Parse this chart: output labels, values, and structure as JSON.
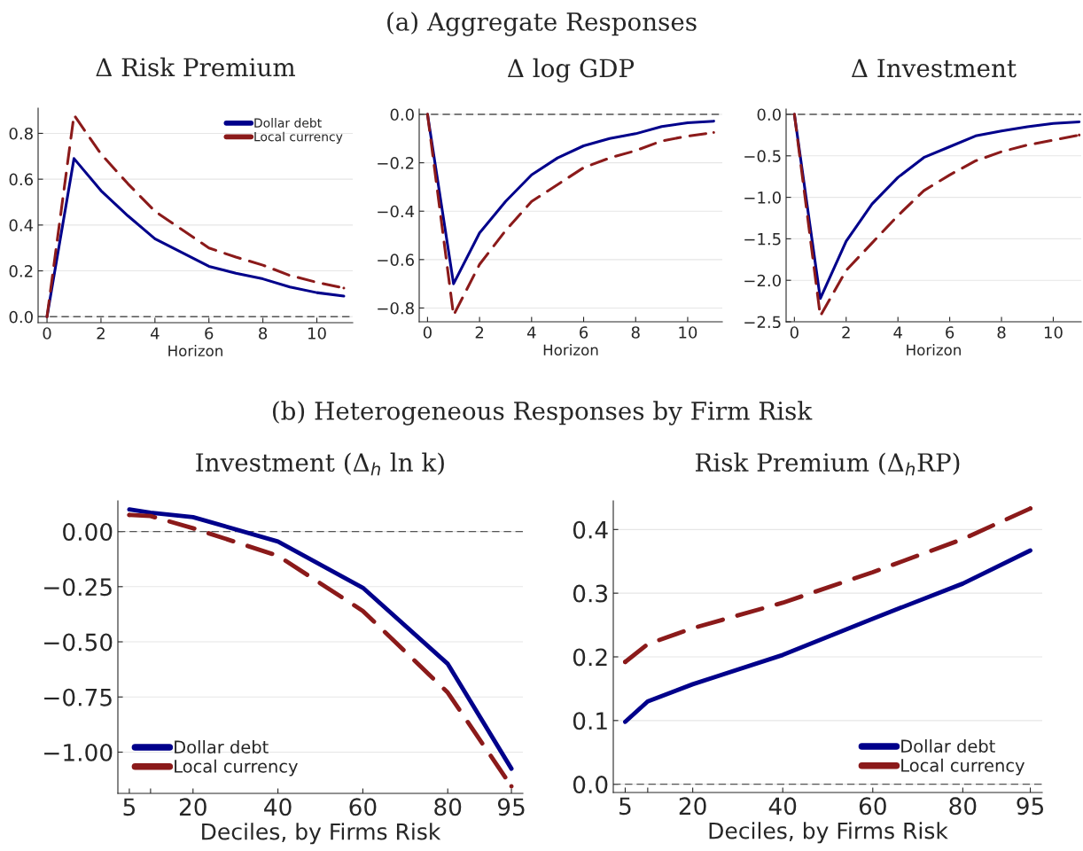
{
  "chart_data": [
    {
      "type": "line",
      "title": "Δ Risk Premium",
      "xlabel": "Horizon",
      "annotations": [
        "(a) Aggregate Responses"
      ],
      "x": [
        0,
        1,
        2,
        3,
        4,
        5,
        6,
        7,
        8,
        9,
        10,
        11
      ],
      "series": [
        {
          "name": "Dollar debt",
          "color": "#00008b",
          "line_style": "solid",
          "values": [
            0,
            0.69,
            0.55,
            0.44,
            0.34,
            0.28,
            0.22,
            0.19,
            0.165,
            0.13,
            0.105,
            0.09
          ]
        },
        {
          "name": "Local currency",
          "color": "#8b1a1a",
          "line_style": "dashed",
          "values": [
            0,
            0.88,
            0.71,
            0.58,
            0.46,
            0.38,
            0.3,
            0.26,
            0.225,
            0.18,
            0.15,
            0.125
          ]
        }
      ],
      "xlim": [
        -0.33,
        11.33
      ],
      "xticks": [
        0,
        2,
        4,
        6,
        8,
        10
      ],
      "ylim": [
        -0.026,
        0.91
      ],
      "yticks": [
        {
          "value": 0,
          "label": "0.0"
        },
        0.2,
        0.4,
        0.6,
        0.8
      ],
      "ref_lines": [
        {
          "axis": "y",
          "value": 0,
          "color": "#555555",
          "line_style": "dashed"
        }
      ],
      "grid": "y",
      "legend": "top right",
      "marker": "none"
    },
    {
      "type": "line",
      "title": "Δ log GDP",
      "xlabel": "Horizon",
      "x": [
        0,
        1,
        2,
        3,
        4,
        5,
        6,
        7,
        8,
        9,
        10,
        11
      ],
      "series": [
        {
          "color": "#00008b",
          "line_style": "solid",
          "values": [
            0,
            -0.7,
            -0.49,
            -0.36,
            -0.25,
            -0.18,
            -0.13,
            -0.1,
            -0.08,
            -0.05,
            -0.035,
            -0.028
          ]
        },
        {
          "color": "#8b1a1a",
          "line_style": "dashed",
          "values": [
            0,
            -0.83,
            -0.62,
            -0.48,
            -0.36,
            -0.29,
            -0.22,
            -0.18,
            -0.15,
            -0.11,
            -0.09,
            -0.075
          ]
        }
      ],
      "xlim": [
        -0.32,
        11.33
      ],
      "xticks": [
        0,
        2,
        4,
        6,
        8,
        10
      ],
      "ylim": [
        -0.857,
        0.022
      ],
      "yticks": [
        {
          "value": -0.8,
          "label": "−0.8"
        },
        {
          "value": -0.6,
          "label": "−0.6"
        },
        {
          "value": -0.4,
          "label": "−0.4"
        },
        {
          "value": -0.2,
          "label": "−0.2"
        },
        {
          "value": 0,
          "label": "0.0"
        }
      ],
      "ref_lines": [
        {
          "axis": "y",
          "value": 0,
          "color": "#555555",
          "line_style": "dashed"
        }
      ],
      "grid": "y",
      "legend": false,
      "marker": "none"
    },
    {
      "type": "line",
      "title": "Δ Investment",
      "xlabel": "Horizon",
      "x": [
        0,
        1,
        2,
        3,
        4,
        5,
        6,
        7,
        8,
        9,
        10,
        11
      ],
      "series": [
        {
          "color": "#00008b",
          "line_style": "solid",
          "values": [
            0,
            -2.22,
            -1.53,
            -1.08,
            -0.76,
            -0.52,
            -0.39,
            -0.26,
            -0.2,
            -0.15,
            -0.11,
            -0.09
          ]
        },
        {
          "color": "#8b1a1a",
          "line_style": "dashed",
          "values": [
            0,
            -2.43,
            -1.88,
            -1.55,
            -1.22,
            -0.92,
            -0.73,
            -0.56,
            -0.45,
            -0.37,
            -0.31,
            -0.25
          ]
        }
      ],
      "xlim": [
        -0.32,
        11.08
      ],
      "xticks": [
        0,
        2,
        4,
        6,
        8,
        10
      ],
      "ylim": [
        -2.5,
        0.064
      ],
      "yticks": [
        {
          "value": -2.5,
          "label": "−2.5"
        },
        {
          "value": -2.0,
          "label": "−2.0"
        },
        {
          "value": -1.5,
          "label": "−1.5"
        },
        {
          "value": -1.0,
          "label": "−1.0"
        },
        {
          "value": -0.5,
          "label": "−0.5"
        },
        {
          "value": 0,
          "label": "0.0"
        }
      ],
      "ref_lines": [
        {
          "axis": "y",
          "value": 0,
          "color": "#555555",
          "line_style": "dashed"
        }
      ],
      "grid": "y",
      "legend": false,
      "marker": "none"
    },
    {
      "type": "line",
      "title": "Investment (Δ$_{h}$ ln k)",
      "xlabel": "Deciles, by Firms Risk",
      "annotations": [
        "(b) Heterogeneous Responses by Firm Risk"
      ],
      "x": [
        5,
        10,
        20,
        40,
        60,
        80,
        95
      ],
      "series": [
        {
          "name": "Dollar debt",
          "color": "#00008b",
          "line_style": "solid",
          "values": [
            0.1,
            0.085,
            0.065,
            -0.045,
            -0.255,
            -0.6,
            -1.075
          ]
        },
        {
          "name": "Local currency",
          "color": "#8b1a1a",
          "line_style": "dashed",
          "values": [
            0.075,
            0.07,
            0.015,
            -0.11,
            -0.36,
            -0.73,
            -1.155
          ]
        }
      ],
      "xlim": [
        2.3,
        97.7
      ],
      "xticks": [
        5,
        {
          "value": 10,
          "label": null
        },
        20,
        40,
        60,
        80,
        95
      ],
      "ylim": [
        -1.187,
        0.139
      ],
      "yticks": [
        {
          "value": -1.0,
          "label": "−1.00"
        },
        {
          "value": -0.75,
          "label": "−0.75"
        },
        {
          "value": -0.5,
          "label": "−0.50"
        },
        {
          "value": -0.25,
          "label": "−0.25"
        },
        {
          "value": 0,
          "label": "0.00"
        }
      ],
      "ref_lines": [
        {
          "axis": "y",
          "value": 0,
          "color": "#555555",
          "line_style": "dashed"
        }
      ],
      "grid": "y",
      "legend": "bottom left",
      "marker": "none"
    },
    {
      "type": "line",
      "title": "Risk Premium (Δ$_{h}$RP)",
      "xlabel": "Deciles, by Firms Risk",
      "x": [
        5,
        10,
        20,
        40,
        60,
        80,
        95
      ],
      "series": [
        {
          "name": "Dollar debt",
          "color": "#00008b",
          "line_style": "solid",
          "values": [
            0.098,
            0.13,
            0.157,
            0.203,
            0.26,
            0.315,
            0.367
          ]
        },
        {
          "name": "Local currency",
          "color": "#8b1a1a",
          "line_style": "dashed",
          "values": [
            0.192,
            0.22,
            0.245,
            0.285,
            0.333,
            0.385,
            0.433
          ]
        }
      ],
      "xlim": [
        2.35,
        97.65
      ],
      "xticks": [
        5,
        {
          "value": 10,
          "label": null
        },
        20,
        40,
        60,
        80,
        95
      ],
      "ylim": [
        -0.013,
        0.445
      ],
      "yticks": [
        {
          "value": 0,
          "label": "0.0"
        },
        0.1,
        0.2,
        0.3,
        0.4
      ],
      "ref_lines": [
        {
          "axis": "y",
          "value": 0,
          "color": "#555555",
          "line_style": "dashed"
        }
      ],
      "grid": "y",
      "legend": "bottom right",
      "marker": "none"
    }
  ]
}
